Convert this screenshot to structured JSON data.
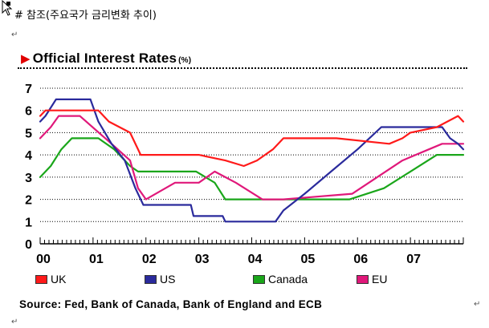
{
  "document": {
    "heading": "# 참조(주요국가 금리변화 추이)",
    "paragraph_mark": "↵"
  },
  "colors": {
    "UK": "#ff1a1a",
    "US": "#2a2a9c",
    "Canada": "#1aa61a",
    "EU": "#e0187a"
  },
  "chart_data": {
    "type": "line",
    "title": "Official Interest Rates",
    "unit_label": "(%)",
    "xlabel": "",
    "ylabel": "%",
    "xlim": [
      2000,
      2008
    ],
    "ylim": [
      0,
      7
    ],
    "xticks": [
      2000,
      2001,
      2002,
      2003,
      2004,
      2005,
      2006,
      2007
    ],
    "xtick_labels": [
      "00",
      "01",
      "02",
      "03",
      "04",
      "05",
      "06",
      "07"
    ],
    "yticks": [
      0,
      1,
      2,
      3,
      4,
      5,
      6,
      7
    ],
    "ytick_labels": [
      "0",
      "1",
      "2",
      "3",
      "4",
      "5",
      "6",
      "7"
    ],
    "grid": "horizontal",
    "legend": [
      "UK",
      "US",
      "Canada",
      "EU"
    ],
    "legend_position": "bottom",
    "source": "Source: Fed, Bank of Canada, Bank of England and ECB",
    "series": [
      {
        "name": "UK",
        "x": [
          2000.0,
          2000.1,
          2001.1,
          2001.3,
          2001.7,
          2001.9,
          2003.0,
          2003.5,
          2003.85,
          2004.1,
          2004.4,
          2004.6,
          2005.6,
          2006.6,
          2006.85,
          2007.0,
          2007.5,
          2007.9,
          2008.0
        ],
        "values": [
          5.75,
          6.0,
          6.0,
          5.5,
          5.0,
          4.0,
          4.0,
          3.75,
          3.5,
          3.75,
          4.25,
          4.75,
          4.75,
          4.5,
          4.75,
          5.0,
          5.25,
          5.75,
          5.5
        ]
      },
      {
        "name": "US",
        "x": [
          2000.0,
          2000.1,
          2000.3,
          2000.95,
          2001.1,
          2001.35,
          2001.6,
          2001.8,
          2001.95,
          2002.85,
          2002.9,
          2003.45,
          2003.5,
          2004.45,
          2004.6,
          2005.0,
          2005.5,
          2006.0,
          2006.45,
          2007.6,
          2007.75,
          2007.9,
          2008.0
        ],
        "values": [
          5.5,
          5.75,
          6.5,
          6.5,
          5.5,
          4.5,
          3.75,
          2.5,
          1.75,
          1.75,
          1.25,
          1.25,
          1.0,
          1.0,
          1.5,
          2.25,
          3.25,
          4.25,
          5.25,
          5.25,
          4.75,
          4.5,
          4.25
        ]
      },
      {
        "name": "Canada",
        "x": [
          2000.0,
          2000.2,
          2000.4,
          2000.6,
          2001.1,
          2001.4,
          2001.7,
          2001.85,
          2002.95,
          2003.3,
          2003.5,
          2005.85,
          2006.5,
          2007.5,
          2008.0
        ],
        "values": [
          3.0,
          3.5,
          4.25,
          4.75,
          4.75,
          4.25,
          3.5,
          3.25,
          3.25,
          2.75,
          2.0,
          2.0,
          2.5,
          4.0,
          4.0
        ]
      },
      {
        "name": "EU",
        "x": [
          2000.0,
          2000.2,
          2000.35,
          2000.75,
          2001.35,
          2001.7,
          2001.85,
          2002.0,
          2002.55,
          2003.0,
          2003.3,
          2003.5,
          2003.7,
          2004.2,
          2004.6,
          2005.9,
          2006.85,
          2007.35,
          2007.6,
          2008.0
        ],
        "values": [
          4.75,
          5.25,
          5.75,
          5.75,
          4.5,
          3.75,
          2.5,
          2.0,
          2.75,
          2.75,
          3.25,
          3.0,
          2.75,
          2.0,
          2.0,
          2.25,
          3.75,
          4.25,
          4.5,
          4.5
        ]
      }
    ]
  }
}
